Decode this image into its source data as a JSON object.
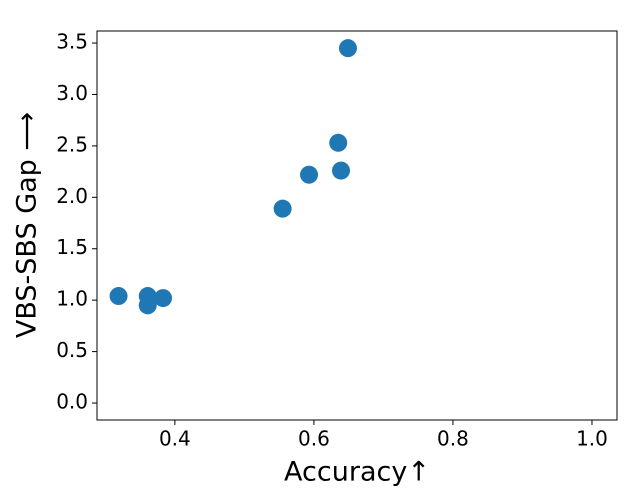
{
  "chart_data": {
    "type": "scatter",
    "x_label": "Accuracy↑",
    "y_label": "VBS-SBS Gap ⟶",
    "color": "#1f77b4",
    "x": [
      0.319,
      0.361,
      0.361,
      0.383,
      0.555,
      0.593,
      0.635,
      0.639,
      0.649
    ],
    "values": [
      1.04,
      1.04,
      0.95,
      1.02,
      1.89,
      2.22,
      2.53,
      2.26,
      3.45
    ],
    "xlim": [
      0.288,
      1.036
    ],
    "ylim": [
      -0.165,
      3.617
    ],
    "xticks": [
      0.4,
      0.6,
      0.8,
      {
        "value": 1,
        "label": "1.0"
      }
    ],
    "yticks": [
      {
        "value": 0,
        "label": "0.0"
      },
      0.5,
      {
        "value": 1,
        "label": "1.0"
      },
      1.5,
      {
        "value": 2,
        "label": "2.0"
      },
      2.5,
      {
        "value": 3,
        "label": "3.0"
      },
      3.5
    ],
    "grid": false
  }
}
